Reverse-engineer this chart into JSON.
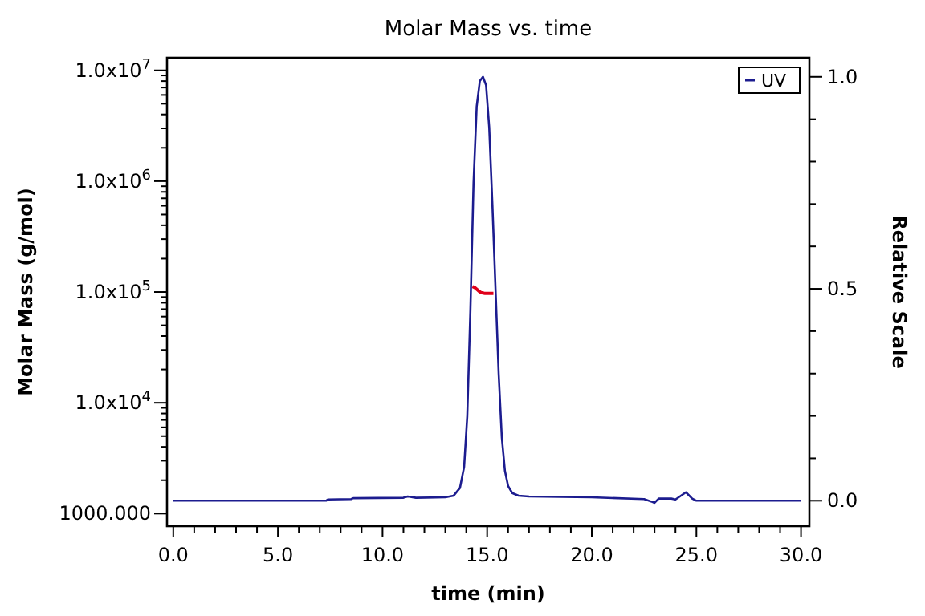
{
  "chart_data": {
    "type": "line",
    "title": "Molar Mass vs. time",
    "xlabel": "time (min)",
    "ylabel": "Molar Mass (g/mol)",
    "y2label": "Relative Scale",
    "log": "y",
    "grid": false,
    "legend": "top right",
    "marker": "none",
    "line_style": "solid",
    "xlim": [
      -0.3,
      30.4
    ],
    "xticks": [
      {
        "value": 0,
        "label": "0.0"
      },
      {
        "value": 1,
        "label": null
      },
      {
        "value": 2,
        "label": null
      },
      {
        "value": 3,
        "label": null
      },
      {
        "value": 4,
        "label": null
      },
      {
        "value": 5,
        "label": "5.0"
      },
      {
        "value": 6,
        "label": null
      },
      {
        "value": 7,
        "label": null
      },
      {
        "value": 8,
        "label": null
      },
      {
        "value": 9,
        "label": null
      },
      {
        "value": 10,
        "label": "10.0"
      },
      {
        "value": 11,
        "label": null
      },
      {
        "value": 12,
        "label": null
      },
      {
        "value": 13,
        "label": null
      },
      {
        "value": 14,
        "label": null
      },
      {
        "value": 15,
        "label": "15.0"
      },
      {
        "value": 16,
        "label": null
      },
      {
        "value": 17,
        "label": null
      },
      {
        "value": 18,
        "label": null
      },
      {
        "value": 19,
        "label": null
      },
      {
        "value": 20,
        "label": "20.0"
      },
      {
        "value": 21,
        "label": null
      },
      {
        "value": 22,
        "label": null
      },
      {
        "value": 23,
        "label": null
      },
      {
        "value": 24,
        "label": null
      },
      {
        "value": 25,
        "label": "25.0"
      },
      {
        "value": 26,
        "label": null
      },
      {
        "value": 27,
        "label": null
      },
      {
        "value": 28,
        "label": null
      },
      {
        "value": 29,
        "label": null
      },
      {
        "value": 30,
        "label": "30.0"
      }
    ],
    "ylim": [
      770,
      13000000
    ],
    "yticks": [
      {
        "value": 1000,
        "label": "1000.000"
      },
      {
        "value": 2000,
        "label": null
      },
      {
        "value": 3000,
        "label": null
      },
      {
        "value": 4000,
        "label": null
      },
      {
        "value": 5000,
        "label": null
      },
      {
        "value": 6000,
        "label": null
      },
      {
        "value": 7000,
        "label": null
      },
      {
        "value": 8000,
        "label": null
      },
      {
        "value": 9000,
        "label": null
      },
      {
        "value": 10000,
        "label": "1.0x10$^{4}$"
      },
      {
        "value": 20000,
        "label": null
      },
      {
        "value": 30000,
        "label": null
      },
      {
        "value": 40000,
        "label": null
      },
      {
        "value": 50000,
        "label": null
      },
      {
        "value": 60000,
        "label": null
      },
      {
        "value": 70000,
        "label": null
      },
      {
        "value": 80000,
        "label": null
      },
      {
        "value": 90000,
        "label": null
      },
      {
        "value": 100000,
        "label": "1.0x10$^{5}$"
      },
      {
        "value": 200000,
        "label": null
      },
      {
        "value": 300000,
        "label": null
      },
      {
        "value": 400000,
        "label": null
      },
      {
        "value": 500000,
        "label": null
      },
      {
        "value": 600000,
        "label": null
      },
      {
        "value": 700000,
        "label": null
      },
      {
        "value": 800000,
        "label": null
      },
      {
        "value": 900000,
        "label": null
      },
      {
        "value": 1000000,
        "label": "1.0x10$^{6}$"
      },
      {
        "value": 2000000,
        "label": null
      },
      {
        "value": 3000000,
        "label": null
      },
      {
        "value": 4000000,
        "label": null
      },
      {
        "value": 5000000,
        "label": null
      },
      {
        "value": 6000000,
        "label": null
      },
      {
        "value": 7000000,
        "label": null
      },
      {
        "value": 8000000,
        "label": null
      },
      {
        "value": 9000000,
        "label": null
      },
      {
        "value": 10000000,
        "label": "1.0x10$^{7}$"
      }
    ],
    "y2lim": [
      -0.06,
      1.045
    ],
    "y2ticks": [
      {
        "value": 0,
        "label": "0.0"
      },
      {
        "value": 0.1,
        "label": null
      },
      {
        "value": 0.2,
        "label": null
      },
      {
        "value": 0.3,
        "label": null
      },
      {
        "value": 0.4,
        "label": null
      },
      {
        "value": 0.5,
        "label": "0.5"
      },
      {
        "value": 0.6,
        "label": null
      },
      {
        "value": 0.7,
        "label": null
      },
      {
        "value": 0.8,
        "label": null
      },
      {
        "value": 0.9,
        "label": null
      },
      {
        "value": 1,
        "label": "1.0"
      }
    ],
    "series": [
      {
        "name": "UV",
        "color": "#1c1c8f",
        "axis": "y2",
        "x": [
          0,
          7.3,
          7.4,
          8.5,
          8.6,
          11,
          11.2,
          11.6,
          13,
          13.4,
          13.7,
          13.9,
          14.05,
          14.2,
          14.35,
          14.5,
          14.65,
          14.8,
          14.95,
          15.1,
          15.25,
          15.4,
          15.55,
          15.7,
          15.85,
          16.0,
          16.2,
          16.5,
          17,
          20,
          22.5,
          22.9,
          23.0,
          23.2,
          23.8,
          24.0,
          24.5,
          24.8,
          25,
          30
        ],
        "values": [
          0,
          0,
          0.003,
          0.004,
          0.006,
          0.007,
          0.01,
          0.007,
          0.008,
          0.012,
          0.03,
          0.08,
          0.2,
          0.45,
          0.75,
          0.93,
          0.99,
          1.0,
          0.98,
          0.88,
          0.7,
          0.5,
          0.3,
          0.15,
          0.07,
          0.035,
          0.018,
          0.012,
          0.01,
          0.008,
          0.004,
          -0.003,
          -0.005,
          0.005,
          0.005,
          0.003,
          0.02,
          0.005,
          0,
          0
        ]
      },
      {
        "color": "#e0001a",
        "axis": "y",
        "x": [
          14.3,
          14.4,
          14.5,
          14.6,
          14.7,
          14.8,
          14.9,
          15.0,
          15.1,
          15.2,
          15.3
        ],
        "values": [
          112000,
          110000,
          106000,
          102000,
          99000,
          98000,
          97000,
          97000,
          97000,
          97000,
          97000
        ]
      }
    ]
  }
}
